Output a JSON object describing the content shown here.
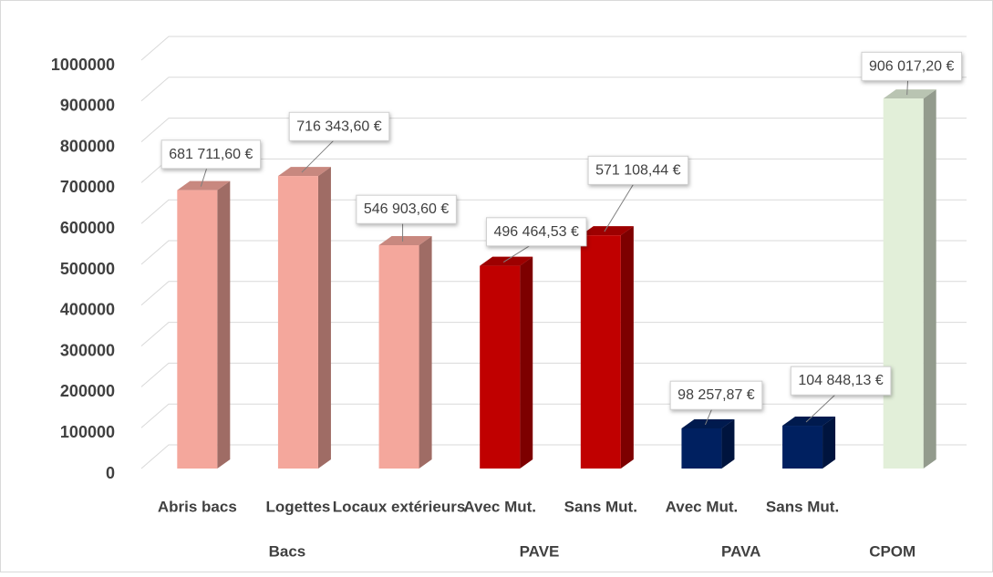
{
  "chart_data": {
    "type": "bar",
    "ylim": [
      0,
      1000000
    ],
    "yticks": [
      0,
      100000,
      200000,
      300000,
      400000,
      500000,
      600000,
      700000,
      800000,
      900000,
      1000000
    ],
    "grid": true,
    "groups": [
      {
        "name": "Bacs",
        "color": "#f4a79c",
        "categories": [
          "Abris bacs",
          "Logettes",
          "Locaux extérieurs"
        ],
        "values": [
          681711.6,
          716343.6,
          546903.6
        ],
        "value_labels": [
          "681 711,60 €",
          "716 343,60 €",
          "546 903,60 €"
        ]
      },
      {
        "name": "PAVE",
        "color": "#c00000",
        "categories": [
          "Avec Mut.",
          "Sans Mut."
        ],
        "values": [
          496464.53,
          571108.44
        ],
        "value_labels": [
          "496 464,53 €",
          "571 108,44 €"
        ]
      },
      {
        "name": "PAVA",
        "color": "#002060",
        "categories": [
          "Avec Mut.",
          "Sans Mut."
        ],
        "values": [
          98257.87,
          104848.13
        ],
        "value_labels": [
          "98 257,87 €",
          "104 848,13 €"
        ]
      },
      {
        "name": "CPOM",
        "color": "#e2efd9",
        "categories": [
          null
        ],
        "values": [
          906017.2
        ],
        "value_labels": [
          "906 017,20 €"
        ]
      }
    ]
  }
}
